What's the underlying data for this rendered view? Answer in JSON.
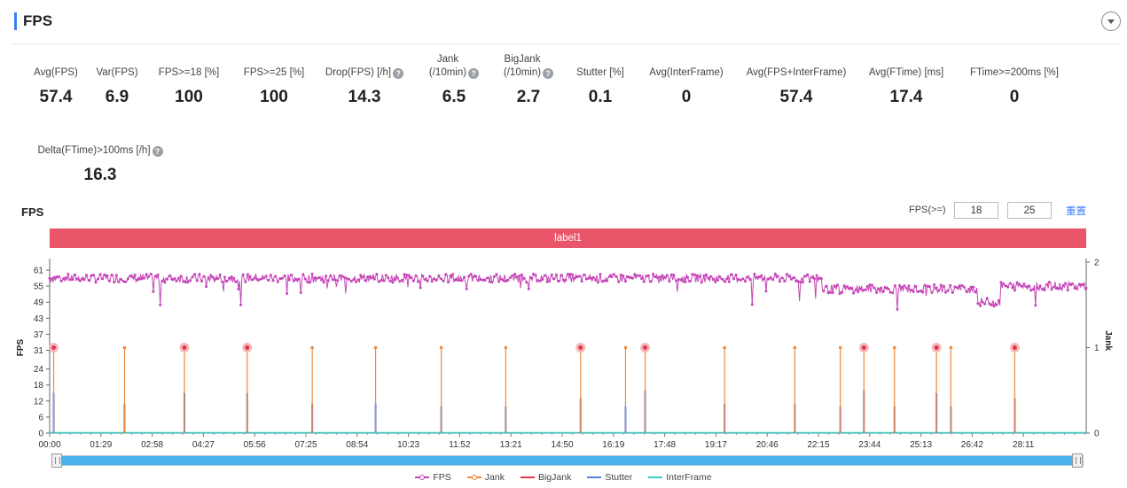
{
  "header": {
    "title": "FPS"
  },
  "metrics": [
    {
      "label": "Avg(FPS)",
      "value": "57.4",
      "help": false
    },
    {
      "label": "Var(FPS)",
      "value": "6.9",
      "help": false
    },
    {
      "label": "FPS>=18 [%]",
      "value": "100",
      "help": false
    },
    {
      "label": "FPS>=25 [%]",
      "value": "100",
      "help": false
    },
    {
      "label": "Drop(FPS) [/h]",
      "value": "14.3",
      "help": true
    },
    {
      "label": "Jank\n(/10min)",
      "value": "6.5",
      "help": true
    },
    {
      "label": "BigJank\n(/10min)",
      "value": "2.7",
      "help": true
    },
    {
      "label": "Stutter [%]",
      "value": "0.1",
      "help": false
    },
    {
      "label": "Avg(InterFrame)",
      "value": "0",
      "help": false
    },
    {
      "label": "Avg(FPS+InterFrame)",
      "value": "57.4",
      "help": false
    },
    {
      "label": "Avg(FTime) [ms]",
      "value": "17.4",
      "help": false
    },
    {
      "label": "FTime>=200ms [%]",
      "value": "0",
      "help": false
    },
    {
      "label": "Delta(FTime)>100ms [/h]",
      "value": "16.3",
      "help": true
    }
  ],
  "chart_header": {
    "title": "FPS",
    "filter_label": "FPS(>=)",
    "threshold_low": "18",
    "threshold_high": "25",
    "reset_label": "重置"
  },
  "label_band": "label1",
  "chart_data": {
    "type": "line",
    "xlabel": "",
    "ylabel": "FPS",
    "y2label": "Jank",
    "x_range_seconds": [
      0,
      1800
    ],
    "x_ticks": [
      "00:00",
      "01:29",
      "02:58",
      "04:27",
      "05:56",
      "07:25",
      "08:54",
      "10:23",
      "11:52",
      "13:21",
      "14:50",
      "16:19",
      "17:48",
      "19:17",
      "20:46",
      "22:15",
      "23:44",
      "25:13",
      "26:42",
      "28:11"
    ],
    "y_ticks": [
      0,
      6,
      12,
      18,
      24,
      31,
      37,
      43,
      49,
      55,
      61
    ],
    "ylim": [
      0,
      64
    ],
    "y2_ticks": [
      0,
      1,
      2
    ],
    "y2lim": [
      0,
      2
    ],
    "series": [
      {
        "name": "FPS",
        "color": "#c744b8",
        "axis": "left",
        "segments": [
          {
            "from": "00:00",
            "to": "22:20",
            "mean": 58
          },
          {
            "from": "22:20",
            "to": "26:50",
            "mean": 54
          },
          {
            "from": "26:50",
            "to": "27:30",
            "mean": 49
          },
          {
            "from": "27:30",
            "to": "29:50",
            "mean": 55
          }
        ]
      },
      {
        "name": "Jank",
        "color": "#f0883a",
        "axis": "right",
        "events": [
          "00:07",
          "02:10",
          "03:54",
          "05:43",
          "07:36",
          "09:26",
          "11:20",
          "13:12",
          "15:22",
          "16:40",
          "17:14",
          "19:32",
          "21:34",
          "22:53",
          "23:34",
          "24:27",
          "25:40",
          "26:05",
          "27:56"
        ],
        "value": 1
      },
      {
        "name": "BigJank",
        "color": "#e3344a",
        "axis": "right",
        "events": [
          "00:07",
          "03:54",
          "05:43",
          "15:22",
          "17:14",
          "23:34",
          "25:40",
          "27:56"
        ],
        "value": 1
      },
      {
        "name": "Stutter",
        "color": "#5b7fde",
        "axis": "left",
        "events": [
          {
            "t": "00:07",
            "v": 15
          },
          {
            "t": "02:10",
            "v": 11
          },
          {
            "t": "03:54",
            "v": 15
          },
          {
            "t": "05:43",
            "v": 15
          },
          {
            "t": "07:36",
            "v": 11
          },
          {
            "t": "09:26",
            "v": 11
          },
          {
            "t": "11:20",
            "v": 10
          },
          {
            "t": "13:12",
            "v": 10
          },
          {
            "t": "15:22",
            "v": 13
          },
          {
            "t": "16:40",
            "v": 10
          },
          {
            "t": "17:14",
            "v": 16
          },
          {
            "t": "19:32",
            "v": 11
          },
          {
            "t": "21:34",
            "v": 11
          },
          {
            "t": "22:53",
            "v": 10
          },
          {
            "t": "23:34",
            "v": 16
          },
          {
            "t": "24:27",
            "v": 10
          },
          {
            "t": "25:40",
            "v": 15
          },
          {
            "t": "26:05",
            "v": 10
          },
          {
            "t": "27:56",
            "v": 13
          }
        ]
      },
      {
        "name": "InterFrame",
        "color": "#36cfc9",
        "axis": "left",
        "values_constant": 0
      }
    ],
    "legend_position": "bottom"
  },
  "legend": [
    {
      "name": "FPS",
      "color": "#c744b8",
      "dot": true
    },
    {
      "name": "Jank",
      "color": "#f0883a",
      "dot": true
    },
    {
      "name": "BigJank",
      "color": "#e3344a",
      "dot": false
    },
    {
      "name": "Stutter",
      "color": "#5b7fde",
      "dot": false
    },
    {
      "name": "InterFrame",
      "color": "#36cfc9",
      "dot": false
    }
  ]
}
